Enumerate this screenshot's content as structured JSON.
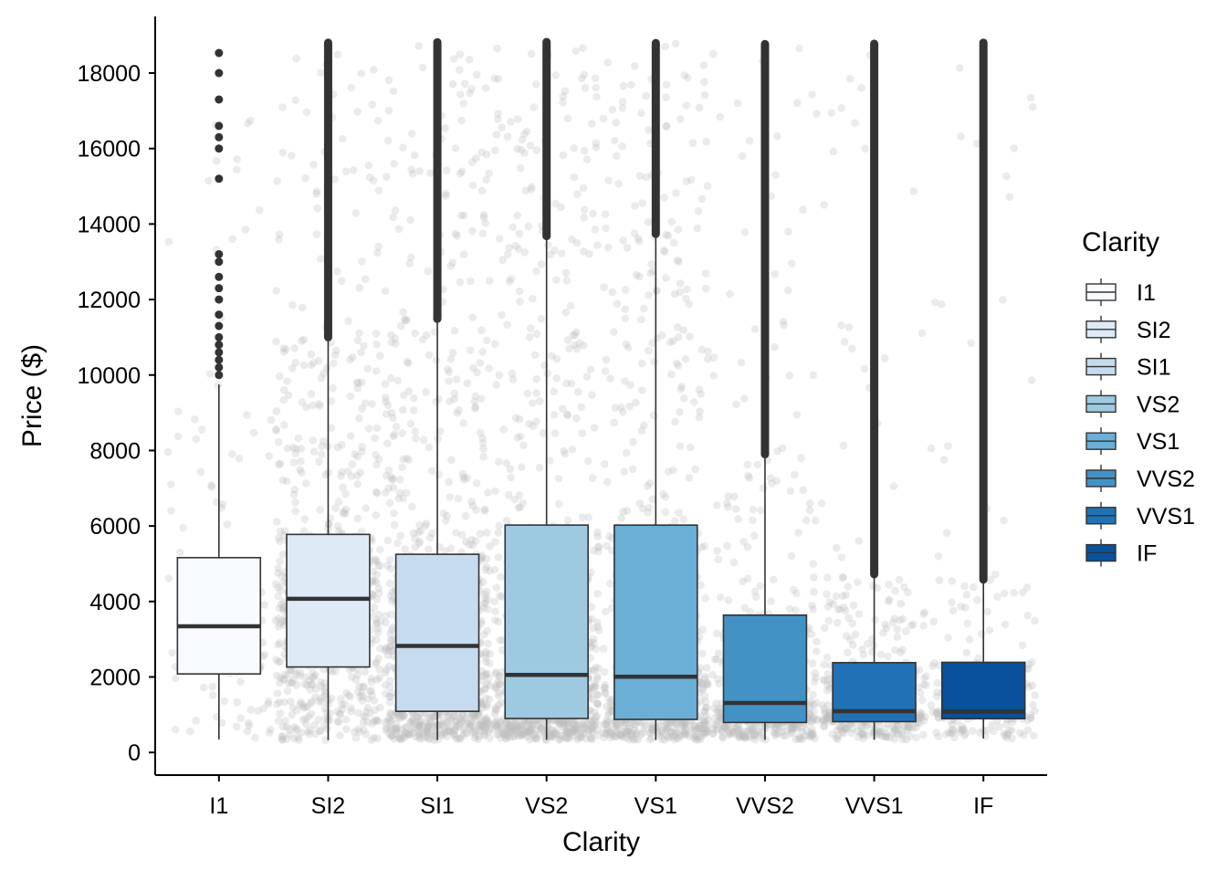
{
  "chart_data": {
    "type": "box",
    "xlabel": "Clarity",
    "ylabel": "Price ($)",
    "ylim": [
      -600,
      19500
    ],
    "yticks": [
      0,
      2000,
      4000,
      6000,
      8000,
      10000,
      12000,
      14000,
      16000,
      18000
    ],
    "categories": [
      "I1",
      "SI2",
      "SI1",
      "VS2",
      "VS1",
      "VVS2",
      "VVS1",
      "IF"
    ],
    "legend": {
      "title": "Clarity",
      "position": "right"
    },
    "grid": false,
    "jitter_color": "#bdbdbd",
    "outlier_color": "#333333",
    "boxes": [
      {
        "category": "I1",
        "fill": "#f7fbff",
        "whisker_low": 345,
        "q1": 2080,
        "median": 3344,
        "q3": 5161,
        "whisker_high": 9750,
        "max": 18531,
        "outliers": [
          10000,
          10200,
          10400,
          10600,
          10800,
          11000,
          11300,
          11600,
          12000,
          12300,
          12600,
          13000,
          13200,
          15200,
          16000,
          16300,
          16600,
          17300,
          18000,
          18531
        ]
      },
      {
        "category": "SI2",
        "fill": "#deebf7",
        "whisker_low": 326,
        "q1": 2264,
        "median": 4072,
        "q3": 5777,
        "whisker_high": 11000,
        "max": 18804
      },
      {
        "category": "SI1",
        "fill": "#c6dbef",
        "whisker_low": 326,
        "q1": 1089,
        "median": 2822,
        "q3": 5250,
        "whisker_high": 11490,
        "max": 18818
      },
      {
        "category": "VS2",
        "fill": "#9ecae1",
        "whisker_low": 334,
        "q1": 900,
        "median": 2054,
        "q3": 6024,
        "whisker_high": 13680,
        "max": 18823
      },
      {
        "category": "VS1",
        "fill": "#6baed6",
        "whisker_low": 327,
        "q1": 876,
        "median": 2005,
        "q3": 6023,
        "whisker_high": 13740,
        "max": 18795
      },
      {
        "category": "VVS2",
        "fill": "#4292c6",
        "whisker_low": 336,
        "q1": 794,
        "median": 1311,
        "q3": 3638,
        "whisker_high": 7900,
        "max": 18768
      },
      {
        "category": "VVS1",
        "fill": "#2171b5",
        "whisker_low": 336,
        "q1": 816,
        "median": 1093,
        "q3": 2379,
        "whisker_high": 4720,
        "max": 18777
      },
      {
        "category": "IF",
        "fill": "#08519c",
        "whisker_low": 369,
        "q1": 895,
        "median": 1080,
        "q3": 2388,
        "whisker_high": 4580,
        "max": 18806
      }
    ]
  }
}
